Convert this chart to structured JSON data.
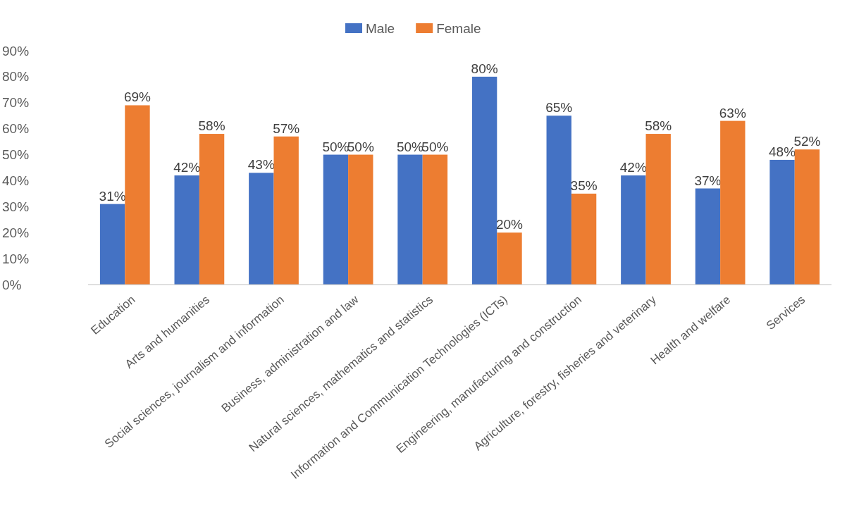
{
  "chart_data": {
    "type": "bar",
    "categories": [
      "Education",
      "Arts and humanities",
      "Social sciences, journalism and information",
      "Business, administration and law",
      "Natural sciences, mathematics and statistics",
      "Information and Communication Technologies (ICTs)",
      "Engineering, manufacturing and construction",
      "Agriculture, forestry, fisheries and veterinary",
      "Health and welfare",
      "Services"
    ],
    "series": [
      {
        "name": "Male",
        "color": "#4472c4",
        "values": [
          31,
          42,
          43,
          50,
          50,
          80,
          65,
          42,
          37,
          48
        ],
        "value_labels": [
          "31%",
          "42%",
          "43%",
          "50%",
          "50%",
          "80%",
          "65%",
          "42%",
          "37%",
          "48%"
        ]
      },
      {
        "name": "Female",
        "color": "#ed7d31",
        "values": [
          69,
          58,
          57,
          50,
          50,
          20,
          35,
          58,
          63,
          52
        ],
        "value_labels": [
          "69%",
          "58%",
          "57%",
          "50%",
          "50%",
          "20%",
          "35%",
          "58%",
          "63%",
          "52%"
        ]
      }
    ],
    "ylim": [
      0,
      90
    ],
    "yticks": [
      {
        "value": 0,
        "label": "0%"
      },
      {
        "value": 10,
        "label": "10%"
      },
      {
        "value": 20,
        "label": "20%"
      },
      {
        "value": 30,
        "label": "30%"
      },
      {
        "value": 40,
        "label": "40%"
      },
      {
        "value": 50,
        "label": "50%"
      },
      {
        "value": 60,
        "label": "60%"
      },
      {
        "value": 70,
        "label": "70%"
      },
      {
        "value": 80,
        "label": "80%"
      },
      {
        "value": 90,
        "label": "90%"
      }
    ],
    "legend": "top"
  }
}
